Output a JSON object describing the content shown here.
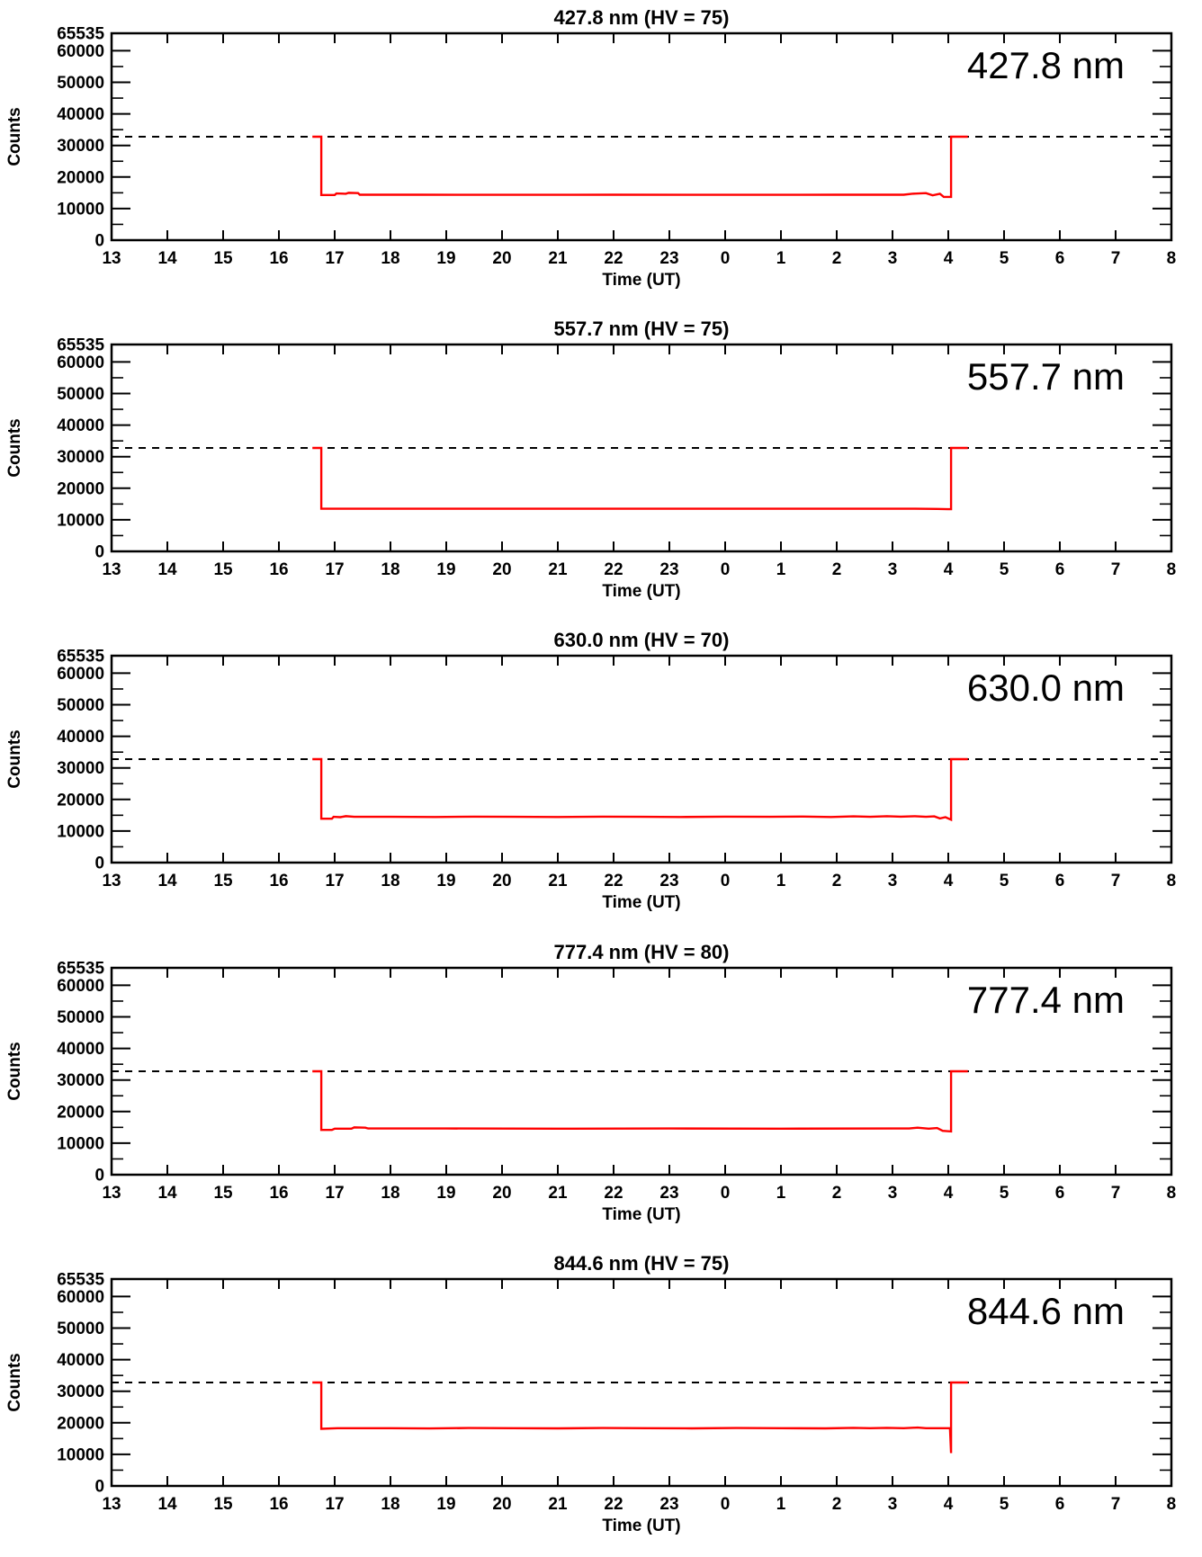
{
  "page": {
    "background": "#ffffff",
    "foreground": "#000000"
  },
  "chart_data": {
    "type": "line",
    "layout": "5 vertically stacked time-series panels, shared axis style",
    "shared_axes": {
      "xlabel": "Time (UT)",
      "ylabel": "Counts",
      "xlim": [
        13,
        32
      ],
      "ylim": [
        0,
        65535
      ],
      "grid": false,
      "xticks": [
        {
          "value": 13,
          "label": "13"
        },
        {
          "value": 14,
          "label": "14"
        },
        {
          "value": 15,
          "label": "15"
        },
        {
          "value": 16,
          "label": "16"
        },
        {
          "value": 17,
          "label": "17"
        },
        {
          "value": 18,
          "label": "18"
        },
        {
          "value": 19,
          "label": "19"
        },
        {
          "value": 20,
          "label": "20"
        },
        {
          "value": 21,
          "label": "21"
        },
        {
          "value": 22,
          "label": "22"
        },
        {
          "value": 23,
          "label": "23"
        },
        {
          "value": 24,
          "label": "0"
        },
        {
          "value": 25,
          "label": "1"
        },
        {
          "value": 26,
          "label": "2"
        },
        {
          "value": 27,
          "label": "3"
        },
        {
          "value": 28,
          "label": "4"
        },
        {
          "value": 29,
          "label": "5"
        },
        {
          "value": 30,
          "label": "6"
        },
        {
          "value": 31,
          "label": "7"
        },
        {
          "value": 32,
          "label": "8"
        }
      ],
      "yticks_major": [
        {
          "value": 0,
          "label": "0"
        },
        {
          "value": 10000,
          "label": "10000"
        },
        {
          "value": 20000,
          "label": "20000"
        },
        {
          "value": 30000,
          "label": "30000"
        },
        {
          "value": 40000,
          "label": "40000"
        },
        {
          "value": 50000,
          "label": "50000"
        },
        {
          "value": 60000,
          "label": "60000"
        },
        {
          "value": 65535,
          "label": "65535"
        }
      ],
      "yticks_minor": [
        5000,
        15000,
        25000,
        35000,
        45000,
        55000
      ],
      "threshold_line": {
        "value": 32767,
        "style": "dashed",
        "color": "#000000"
      },
      "trace_color": "#ff0000"
    },
    "panels": [
      {
        "id": "panel-427-8-nm",
        "title": "427.8 nm (HV = 75)",
        "corner_label": "427.8 nm",
        "series": [
          {
            "name": "counts",
            "color": "#ff0000",
            "points": [
              [
                16.6,
                32767
              ],
              [
                16.76,
                32767
              ],
              [
                16.76,
                14300
              ],
              [
                17.0,
                14300
              ],
              [
                17.03,
                14800
              ],
              [
                17.2,
                14700
              ],
              [
                17.25,
                15000
              ],
              [
                17.42,
                14900
              ],
              [
                17.45,
                14400
              ],
              [
                18.5,
                14400
              ],
              [
                20.0,
                14350
              ],
              [
                22.0,
                14400
              ],
              [
                24.0,
                14350
              ],
              [
                26.0,
                14400
              ],
              [
                27.2,
                14400
              ],
              [
                27.35,
                14700
              ],
              [
                27.6,
                14900
              ],
              [
                27.72,
                14200
              ],
              [
                27.85,
                14700
              ],
              [
                27.92,
                13700
              ],
              [
                28.05,
                13700
              ],
              [
                28.05,
                32767
              ],
              [
                28.35,
                32767
              ]
            ]
          }
        ]
      },
      {
        "id": "panel-557-7-nm",
        "title": "557.7 nm (HV = 75)",
        "corner_label": "557.7 nm",
        "series": [
          {
            "name": "counts",
            "color": "#ff0000",
            "points": [
              [
                16.6,
                32767
              ],
              [
                16.76,
                32767
              ],
              [
                16.76,
                13500
              ],
              [
                19.0,
                13500
              ],
              [
                22.0,
                13500
              ],
              [
                25.0,
                13500
              ],
              [
                27.4,
                13500
              ],
              [
                27.8,
                13450
              ],
              [
                28.0,
                13350
              ],
              [
                28.05,
                13350
              ],
              [
                28.05,
                32767
              ],
              [
                28.35,
                32767
              ]
            ]
          }
        ]
      },
      {
        "id": "panel-630-0-nm",
        "title": "630.0 nm (HV = 70)",
        "corner_label": "630.0 nm",
        "series": [
          {
            "name": "counts",
            "color": "#ff0000",
            "points": [
              [
                16.6,
                32767
              ],
              [
                16.76,
                32767
              ],
              [
                16.76,
                13900
              ],
              [
                16.95,
                13900
              ],
              [
                16.98,
                14500
              ],
              [
                17.1,
                14400
              ],
              [
                17.2,
                14700
              ],
              [
                17.35,
                14500
              ],
              [
                18.0,
                14500
              ],
              [
                18.8,
                14450
              ],
              [
                19.5,
                14550
              ],
              [
                20.2,
                14500
              ],
              [
                21.0,
                14450
              ],
              [
                21.8,
                14550
              ],
              [
                22.5,
                14500
              ],
              [
                23.2,
                14450
              ],
              [
                24.0,
                14550
              ],
              [
                24.8,
                14500
              ],
              [
                25.4,
                14600
              ],
              [
                25.9,
                14450
              ],
              [
                26.3,
                14650
              ],
              [
                26.6,
                14500
              ],
              [
                26.9,
                14700
              ],
              [
                27.15,
                14550
              ],
              [
                27.4,
                14700
              ],
              [
                27.6,
                14500
              ],
              [
                27.75,
                14650
              ],
              [
                27.85,
                14000
              ],
              [
                27.95,
                14400
              ],
              [
                28.05,
                13600
              ],
              [
                28.05,
                32767
              ],
              [
                28.35,
                32767
              ]
            ]
          }
        ]
      },
      {
        "id": "panel-777-4-nm",
        "title": "777.4 nm (HV = 80)",
        "corner_label": "777.4 nm",
        "series": [
          {
            "name": "counts",
            "color": "#ff0000",
            "points": [
              [
                16.6,
                32767
              ],
              [
                16.76,
                32767
              ],
              [
                16.76,
                14200
              ],
              [
                16.95,
                14200
              ],
              [
                17.0,
                14600
              ],
              [
                17.3,
                14600
              ],
              [
                17.35,
                15000
              ],
              [
                17.55,
                14900
              ],
              [
                17.6,
                14650
              ],
              [
                19.0,
                14650
              ],
              [
                21.0,
                14600
              ],
              [
                23.0,
                14650
              ],
              [
                25.0,
                14600
              ],
              [
                27.0,
                14650
              ],
              [
                27.3,
                14650
              ],
              [
                27.45,
                14900
              ],
              [
                27.65,
                14600
              ],
              [
                27.8,
                14800
              ],
              [
                27.9,
                13900
              ],
              [
                28.05,
                13700
              ],
              [
                28.05,
                32767
              ],
              [
                28.35,
                32767
              ]
            ]
          }
        ]
      },
      {
        "id": "panel-844-6-nm",
        "title": "844.6 nm (HV = 75)",
        "corner_label": "844.6 nm",
        "series": [
          {
            "name": "counts",
            "color": "#ff0000",
            "points": [
              [
                16.6,
                32767
              ],
              [
                16.76,
                32767
              ],
              [
                16.76,
                18100
              ],
              [
                17.05,
                18300
              ],
              [
                18.0,
                18300
              ],
              [
                18.7,
                18200
              ],
              [
                19.4,
                18350
              ],
              [
                20.2,
                18300
              ],
              [
                21.0,
                18250
              ],
              [
                21.8,
                18350
              ],
              [
                22.6,
                18300
              ],
              [
                23.4,
                18250
              ],
              [
                24.2,
                18350
              ],
              [
                25.0,
                18300
              ],
              [
                25.8,
                18250
              ],
              [
                26.3,
                18400
              ],
              [
                26.6,
                18300
              ],
              [
                26.9,
                18400
              ],
              [
                27.2,
                18300
              ],
              [
                27.45,
                18500
              ],
              [
                27.6,
                18300
              ],
              [
                27.9,
                18300
              ],
              [
                28.03,
                18300
              ],
              [
                28.05,
                10400
              ],
              [
                28.05,
                32767
              ],
              [
                28.35,
                32767
              ]
            ]
          }
        ]
      }
    ]
  }
}
